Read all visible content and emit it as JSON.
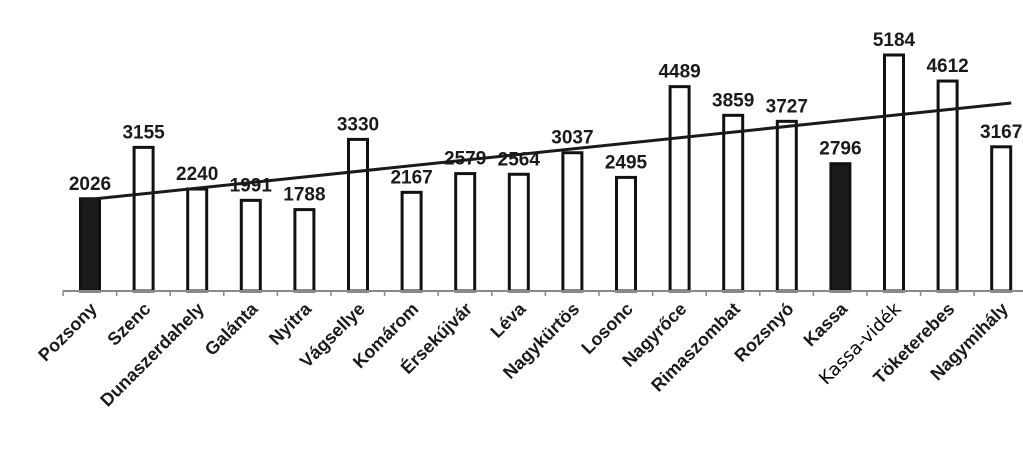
{
  "chart_data": {
    "type": "bar",
    "title": "",
    "xlabel": "",
    "ylabel": "",
    "ylim": [
      0,
      5500
    ],
    "grid": false,
    "legend": "none",
    "categories": [
      "Pozsony",
      "Szenc",
      "Dunaszerdahely",
      "Galánta",
      "Nyitra",
      "Vágsellye",
      "Komárom",
      "Érsekújvár",
      "Léva",
      "Nagykürtös",
      "Losonc",
      "Nagyrőce",
      "Rimaszombat",
      "Rozsnyó",
      "Kassa",
      "Kassa-vidék",
      "Töketerebes",
      "Nagymihály"
    ],
    "values": [
      2026,
      3155,
      2240,
      1991,
      1788,
      3330,
      2167,
      2579,
      2564,
      3037,
      2495,
      4489,
      3859,
      3727,
      2796,
      5184,
      4612,
      3167
    ],
    "highlighted": [
      "Pozsony",
      "Kassa"
    ],
    "trendline": {
      "type": "linear",
      "start_value": 1990,
      "end_value": 4130
    },
    "colors": {
      "bar_fill": "#ffffff",
      "highlight_fill": "#1a1a1a",
      "bar_stroke": "#111111",
      "axis": "#888888"
    }
  }
}
